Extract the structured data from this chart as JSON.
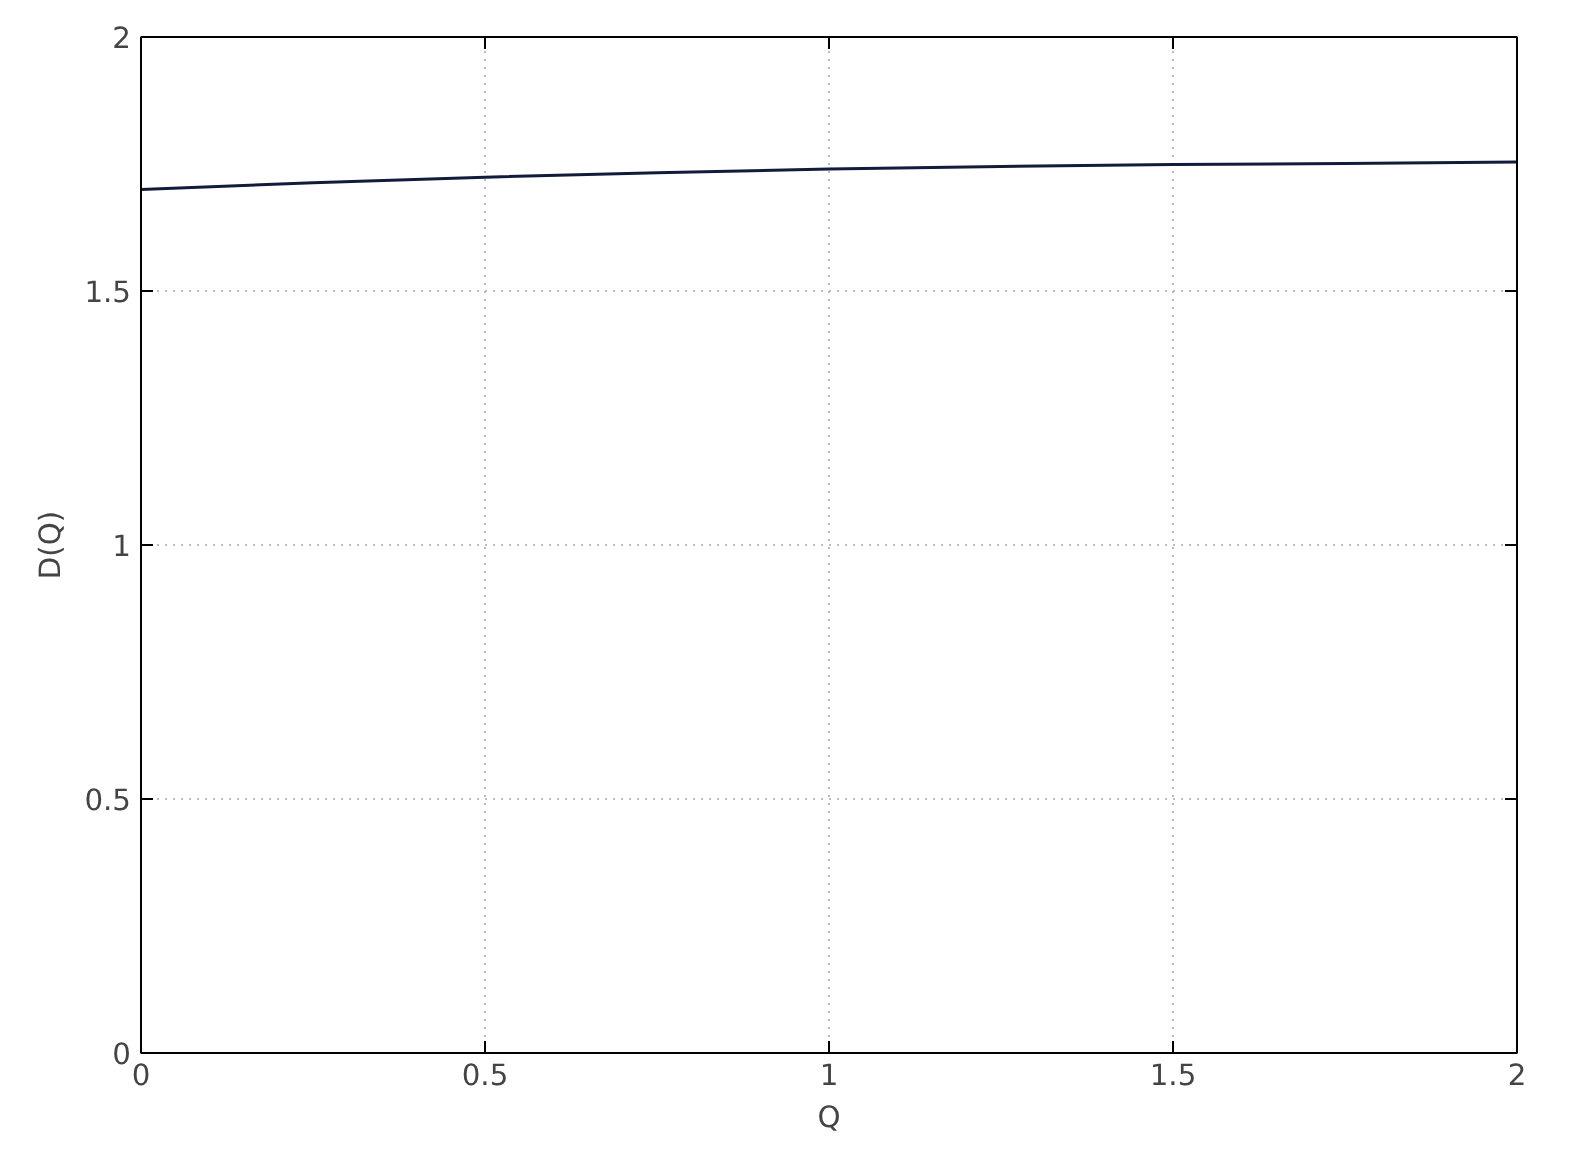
{
  "chart_data": {
    "type": "line",
    "xlabel": "Q",
    "ylabel": "D(Q)",
    "x": [
      0,
      0.25,
      0.5,
      0.75,
      1,
      1.25,
      1.5,
      1.75,
      2
    ],
    "series": [
      {
        "color": "#101c3a",
        "values": [
          1.7,
          1.713,
          1.724,
          1.733,
          1.74,
          1.745,
          1.749,
          1.751,
          1.754
        ]
      }
    ],
    "xlim": [
      0,
      2
    ],
    "ylim": [
      0,
      2
    ],
    "xticks": [
      0,
      0.5,
      1,
      1.5,
      2
    ],
    "yticks": [
      0,
      0.5,
      1,
      1.5,
      2
    ],
    "grid": true,
    "marker": "none",
    "line_style": "solid"
  }
}
